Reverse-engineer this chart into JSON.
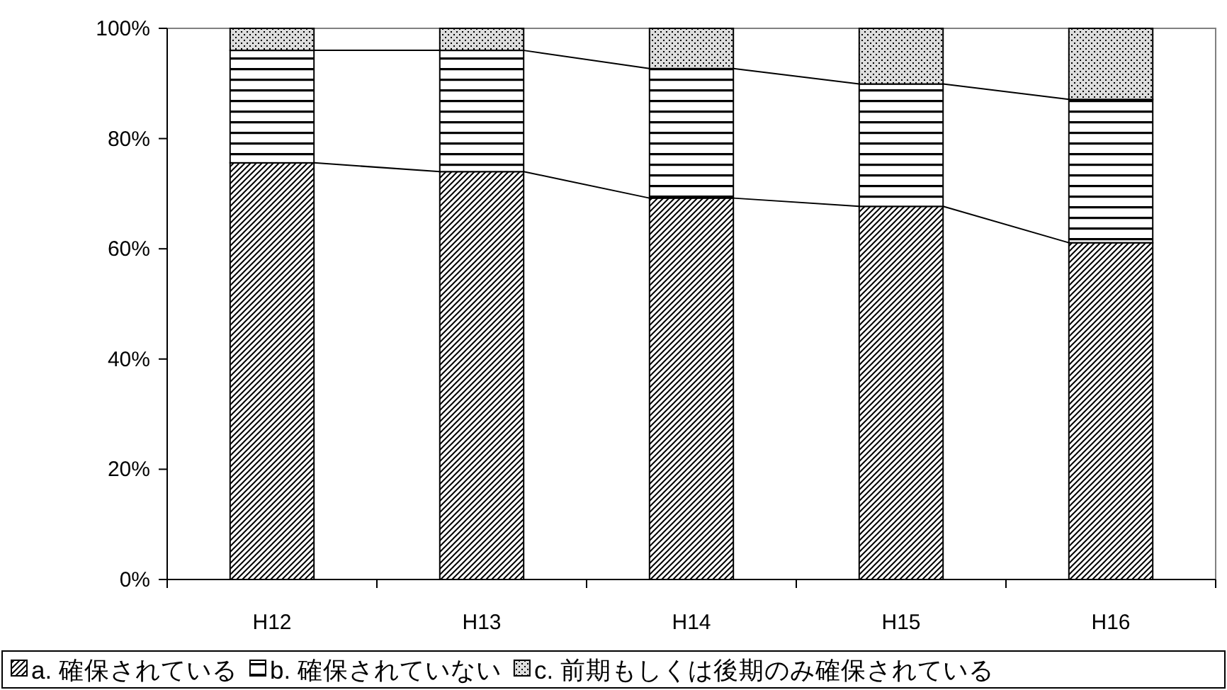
{
  "chart_data": {
    "type": "bar",
    "stacked": true,
    "categories": [
      "H12",
      "H13",
      "H14",
      "H15",
      "H16"
    ],
    "series": [
      {
        "name": "a. 確保されている",
        "color": "#000000",
        "values": [
          75.6,
          74,
          69.2,
          67.7,
          61.1
        ]
      },
      {
        "name": "b. 確保されていない",
        "color": "#000000",
        "values": [
          20.4,
          22,
          23.5,
          22.2,
          26
        ]
      },
      {
        "name": "c. 前期もしくは後期のみ確保されている",
        "color": "#000000",
        "values": [
          4,
          4,
          7.3,
          10.1,
          12.9
        ]
      }
    ],
    "ylim": [
      0,
      100
    ],
    "yticks": [
      {
        "value": 0,
        "label": "0%"
      },
      {
        "value": 20,
        "label": "20%"
      },
      {
        "value": 40,
        "label": "40%"
      },
      {
        "value": 60,
        "label": "60%"
      },
      {
        "value": 80,
        "label": "80%"
      },
      {
        "value": 100,
        "label": "100%"
      }
    ],
    "grid": false,
    "legend": "bottom"
  }
}
